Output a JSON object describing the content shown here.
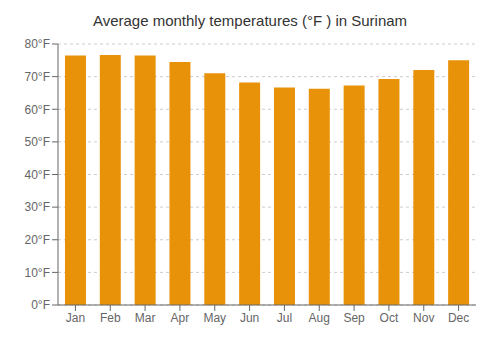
{
  "chart_data": {
    "type": "bar",
    "title": "Average monthly temperatures (°F ) in Surinam",
    "categories": [
      "Jan",
      "Feb",
      "Mar",
      "Apr",
      "May",
      "Jun",
      "Jul",
      "Aug",
      "Sep",
      "Oct",
      "Nov",
      "Dec"
    ],
    "values": [
      76.5,
      76.6,
      76.5,
      74.5,
      71.0,
      68.2,
      66.7,
      66.3,
      67.3,
      69.3,
      72.0,
      75.0
    ],
    "color": "#E8920A",
    "ylim": [
      0,
      80
    ],
    "yticks": [
      {
        "value": 0,
        "label": "0°F"
      },
      {
        "value": 10,
        "label": "10°F"
      },
      {
        "value": 20,
        "label": "20°F"
      },
      {
        "value": 30,
        "label": "30°F"
      },
      {
        "value": 40,
        "label": "40°F"
      },
      {
        "value": 50,
        "label": "50°F"
      },
      {
        "value": 60,
        "label": "60°F"
      },
      {
        "value": 70,
        "label": "70°F"
      },
      {
        "value": 80,
        "label": "80°F"
      }
    ],
    "grid": true
  }
}
